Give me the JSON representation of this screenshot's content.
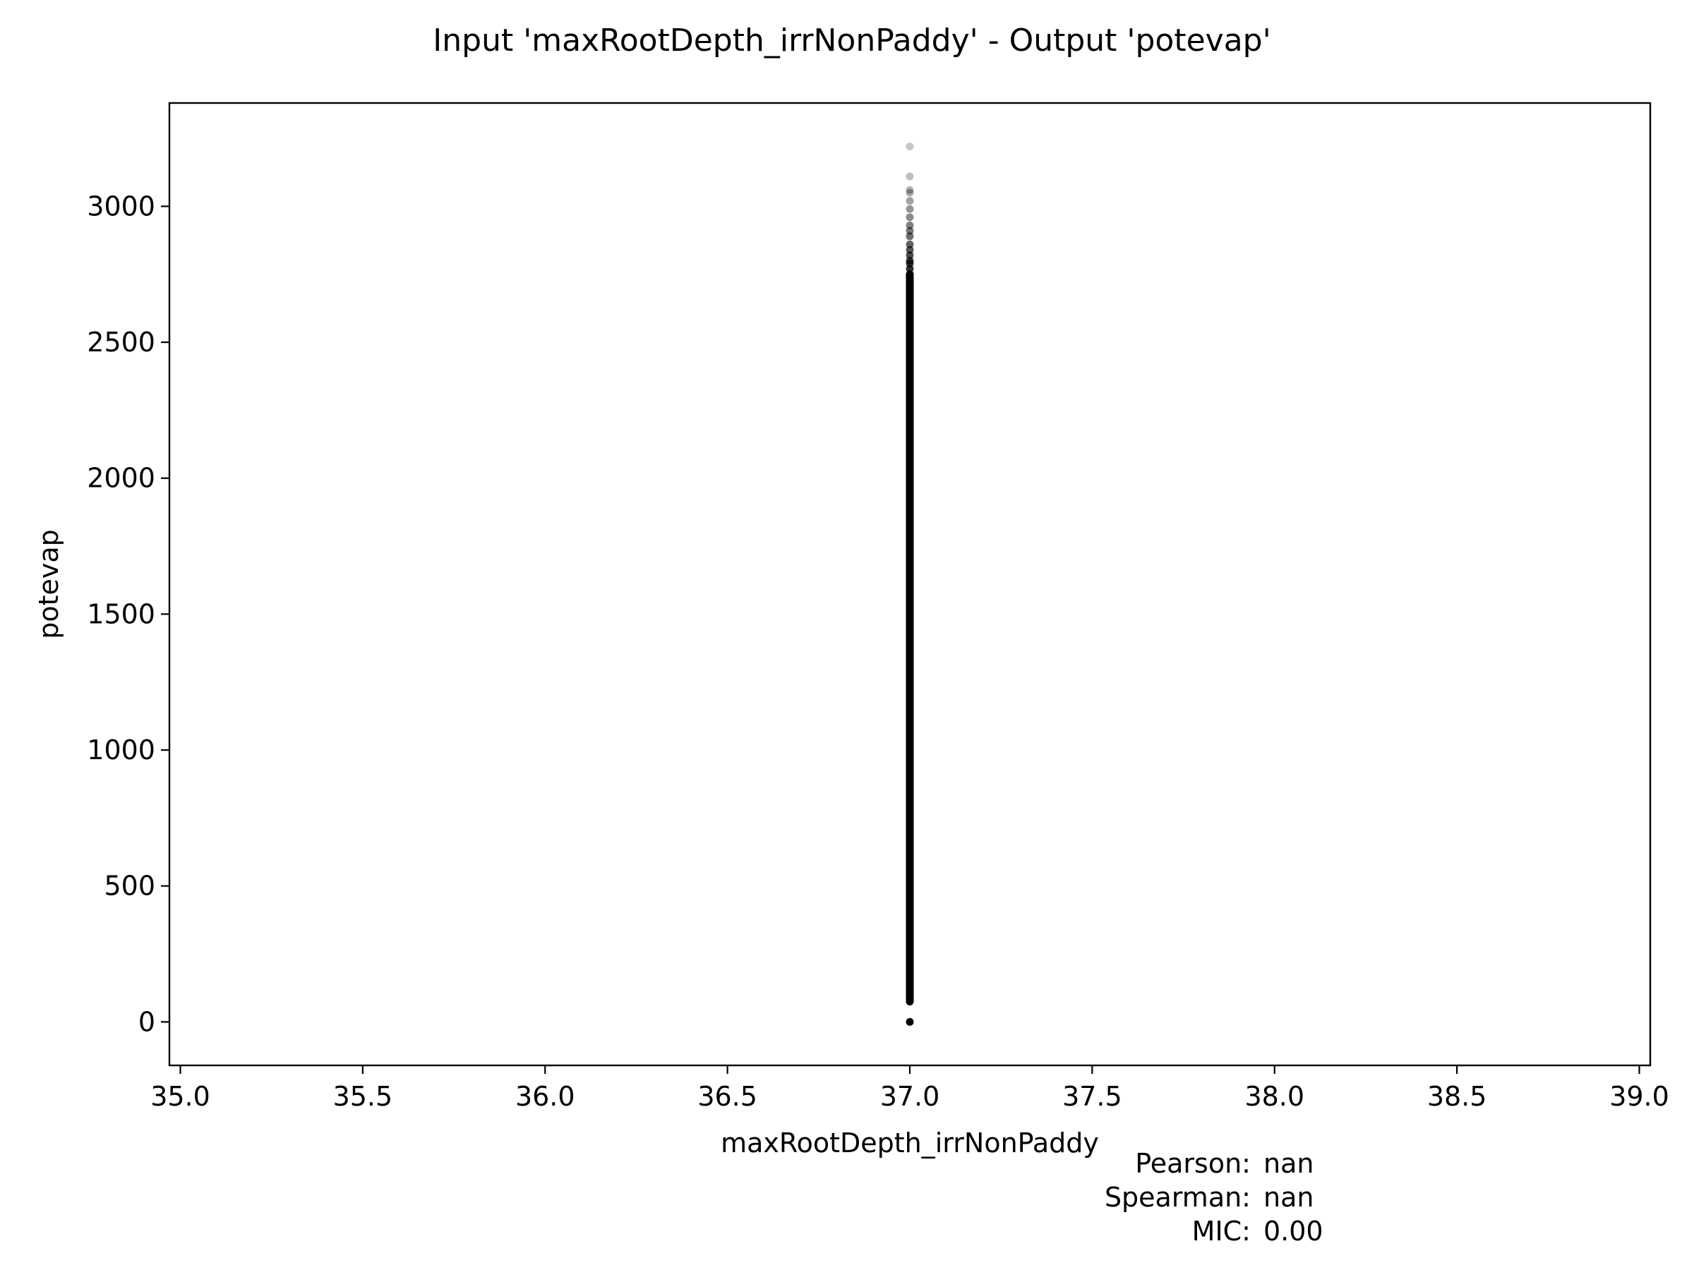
{
  "chart_data": {
    "type": "scatter",
    "title": "Input 'maxRootDepth_irrNonPaddy' - Output 'potevap'",
    "xlabel": "maxRootDepth_irrNonPaddy",
    "ylabel": "potevap",
    "xlim": [
      34.97,
      39.03
    ],
    "ylim": [
      -160,
      3380
    ],
    "xticks": [
      35.0,
      35.5,
      36.0,
      36.5,
      37.0,
      37.5,
      38.0,
      38.5,
      39.0
    ],
    "xtick_labels": [
      "35.0",
      "35.5",
      "36.0",
      "36.5",
      "37.0",
      "37.5",
      "38.0",
      "38.5",
      "39.0"
    ],
    "yticks": [
      0,
      500,
      1000,
      1500,
      2000,
      2500,
      3000
    ],
    "ytick_labels": [
      "0",
      "500",
      "1000",
      "1500",
      "2000",
      "2500",
      "3000"
    ],
    "grid": false,
    "marker_color": "#000000",
    "points": {
      "x": 37.0,
      "dense_range": [
        75,
        2750
      ],
      "outliers_y": [
        0,
        2770,
        2790,
        2800,
        2820,
        2840,
        2860,
        2890,
        2910,
        2930,
        2960,
        2990,
        3020,
        3050,
        3060,
        3110,
        3220
      ]
    }
  },
  "stats": [
    {
      "label": "Pearson:",
      "value": "nan"
    },
    {
      "label": "Spearman:",
      "value": "nan"
    },
    {
      "label": "MIC:",
      "value": "0.00"
    }
  ]
}
